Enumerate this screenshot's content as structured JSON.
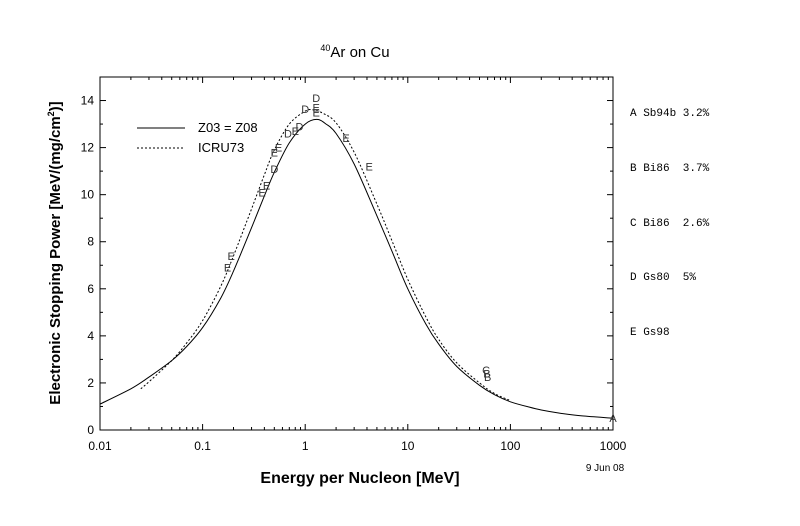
{
  "chart_data": {
    "type": "line",
    "title_sup": "40",
    "title_main": "Ar on Cu",
    "xlabel": "Energy per Nucleon [MeV]",
    "ylabel": "Electronic Stopping Power [MeV/(mg/cm",
    "ylabel_sup": "2",
    "ylabel_end": ")]",
    "x_scale": "log",
    "xlim": [
      0.01,
      1000
    ],
    "ylim": [
      0,
      15
    ],
    "x_ticks": [
      0.01,
      0.1,
      1,
      10,
      100,
      1000
    ],
    "x_tick_labels": [
      "0.01",
      "0.1",
      "1",
      "10",
      "100",
      "1000"
    ],
    "y_ticks": [
      0,
      2,
      4,
      6,
      8,
      10,
      12,
      14
    ],
    "y_tick_labels": [
      "0",
      "2",
      "4",
      "6",
      "8",
      "10",
      "12",
      "14"
    ],
    "date": "9 Jun 08",
    "legend": [
      {
        "label": "Z03 = Z08",
        "style": "solid"
      },
      {
        "label": "ICRU73",
        "style": "dotted"
      }
    ],
    "series": [
      {
        "name": "Z03 = Z08",
        "style": "solid",
        "x": [
          0.01,
          0.02,
          0.03,
          0.05,
          0.07,
          0.1,
          0.15,
          0.2,
          0.3,
          0.4,
          0.5,
          0.7,
          1.0,
          1.3,
          1.6,
          2.0,
          3.0,
          5.0,
          7.0,
          10,
          15,
          20,
          30,
          50,
          70,
          100,
          150,
          200,
          300,
          500,
          1000
        ],
        "y": [
          1.1,
          1.75,
          2.25,
          2.95,
          3.55,
          4.35,
          5.6,
          6.75,
          8.6,
          9.95,
          10.95,
          12.2,
          13.0,
          13.2,
          13.0,
          12.6,
          11.3,
          9.1,
          7.6,
          6.0,
          4.5,
          3.65,
          2.7,
          1.9,
          1.5,
          1.2,
          0.98,
          0.85,
          0.72,
          0.6,
          0.5
        ]
      },
      {
        "name": "ICRU73",
        "style": "dotted",
        "x": [
          0.025,
          0.03,
          0.05,
          0.07,
          0.1,
          0.15,
          0.2,
          0.3,
          0.4,
          0.5,
          0.7,
          1.0,
          1.2,
          1.5,
          2.0,
          3.0,
          5.0,
          7.0,
          10,
          15,
          20,
          30,
          50,
          70,
          100
        ],
        "y": [
          1.75,
          2.05,
          2.95,
          3.7,
          4.65,
          6.1,
          7.4,
          9.4,
          10.85,
          11.9,
          13.0,
          13.55,
          13.6,
          13.45,
          13.05,
          11.8,
          9.6,
          8.05,
          6.4,
          4.8,
          3.85,
          2.85,
          2.0,
          1.55,
          1.25
        ]
      }
    ],
    "data_labels": [
      {
        "letter": "E",
        "x": 0.175,
        "y": 6.9
      },
      {
        "letter": "E",
        "x": 0.19,
        "y": 7.4
      },
      {
        "letter": "E",
        "x": 0.38,
        "y": 10.1
      },
      {
        "letter": "E",
        "x": 0.42,
        "y": 10.4
      },
      {
        "letter": "D",
        "x": 0.5,
        "y": 11.1
      },
      {
        "letter": "E",
        "x": 0.5,
        "y": 11.8
      },
      {
        "letter": "E",
        "x": 0.55,
        "y": 12.0
      },
      {
        "letter": "D",
        "x": 0.68,
        "y": 12.6
      },
      {
        "letter": "E",
        "x": 0.8,
        "y": 12.7
      },
      {
        "letter": "D",
        "x": 0.88,
        "y": 12.9
      },
      {
        "letter": "D",
        "x": 1.0,
        "y": 13.65
      },
      {
        "letter": "D",
        "x": 1.28,
        "y": 14.1
      },
      {
        "letter": "E",
        "x": 1.28,
        "y": 13.7
      },
      {
        "letter": "E",
        "x": 1.28,
        "y": 13.5
      },
      {
        "letter": "E",
        "x": 2.5,
        "y": 12.4
      },
      {
        "letter": "E",
        "x": 4.2,
        "y": 11.2
      },
      {
        "letter": "C",
        "x": 58,
        "y": 2.55
      },
      {
        "letter": "B",
        "x": 59,
        "y": 2.4
      },
      {
        "letter": "B",
        "x": 60,
        "y": 2.25
      },
      {
        "letter": "A",
        "x": 1000,
        "y": 0.5
      }
    ]
  },
  "references": [
    "A Sb94b 3.2%",
    "B Bi86  3.7%",
    "C Bi86  2.6%",
    "D Gs80  5%",
    "E Gs98"
  ]
}
